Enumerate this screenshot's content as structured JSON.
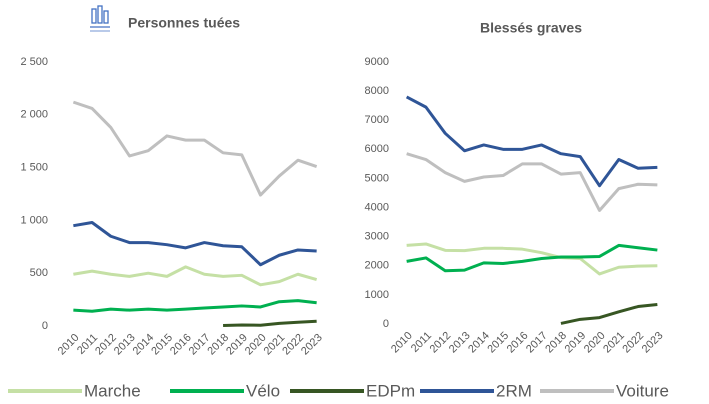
{
  "chart_data": [
    {
      "type": "line",
      "title": "Personnes tuées",
      "categories": [
        "2010",
        "2011",
        "2012",
        "2013",
        "2014",
        "2015",
        "2016",
        "2017",
        "2018",
        "2019",
        "2020",
        "2021",
        "2022",
        "2023"
      ],
      "ylim": [
        0,
        2500
      ],
      "yticks": [
        0,
        500,
        {
          "value": 1000,
          "label": "1 000"
        },
        {
          "value": 1500,
          "label": "1 500"
        },
        {
          "value": 2000,
          "label": "2 000"
        },
        {
          "value": 2500,
          "label": "2 500"
        }
      ],
      "series": [
        {
          "name": "Marche",
          "color": "#c5e0a5",
          "values": [
            490,
            520,
            490,
            470,
            500,
            470,
            560,
            490,
            470,
            480,
            390,
            420,
            490,
            440
          ]
        },
        {
          "name": "Vélo",
          "color": "#00b050",
          "values": [
            150,
            140,
            160,
            150,
            160,
            150,
            160,
            170,
            180,
            190,
            180,
            230,
            240,
            220
          ]
        },
        {
          "name": "EDPm",
          "color": "#375623",
          "values": [
            null,
            null,
            null,
            null,
            null,
            null,
            null,
            null,
            5,
            10,
            7,
            25,
            35,
            45
          ]
        },
        {
          "name": "2RM",
          "color": "#2f5597",
          "values": [
            950,
            980,
            850,
            790,
            790,
            770,
            740,
            790,
            760,
            750,
            580,
            670,
            720,
            710
          ]
        },
        {
          "name": "Voiture",
          "color": "#bfbfbf",
          "values": [
            2120,
            2060,
            1880,
            1610,
            1660,
            1800,
            1760,
            1760,
            1640,
            1620,
            1240,
            1420,
            1570,
            1510
          ]
        }
      ]
    },
    {
      "type": "line",
      "title": "Blessés graves",
      "categories": [
        "2010",
        "2011",
        "2012",
        "2013",
        "2014",
        "2015",
        "2016",
        "2017",
        "2018",
        "2019",
        "2020",
        "2021",
        "2022",
        "2023"
      ],
      "ylim": [
        0,
        9000
      ],
      "yticks": [
        0,
        1000,
        2000,
        3000,
        4000,
        5000,
        6000,
        7000,
        8000,
        9000
      ],
      "series": [
        {
          "name": "Marche",
          "color": "#c5e0a5",
          "values": [
            2700,
            2750,
            2530,
            2520,
            2600,
            2600,
            2570,
            2450,
            2280,
            2250,
            1720,
            1950,
            1990,
            2000
          ]
        },
        {
          "name": "Vélo",
          "color": "#00b050",
          "values": [
            2150,
            2270,
            1830,
            1850,
            2100,
            2080,
            2150,
            2250,
            2300,
            2300,
            2320,
            2700,
            2620,
            2540
          ]
        },
        {
          "name": "EDPm",
          "color": "#375623",
          "values": [
            null,
            null,
            null,
            null,
            null,
            null,
            null,
            null,
            20,
            160,
            220,
            420,
            600,
            670
          ]
        },
        {
          "name": "2RM",
          "color": "#2f5597",
          "values": [
            7800,
            7450,
            6550,
            5950,
            6150,
            6000,
            6000,
            6150,
            5850,
            5750,
            4750,
            5650,
            5350,
            5380
          ]
        },
        {
          "name": "Voiture",
          "color": "#bfbfbf",
          "values": [
            5850,
            5650,
            5200,
            4900,
            5050,
            5100,
            5500,
            5500,
            5150,
            5200,
            3900,
            4650,
            4800,
            4780
          ]
        }
      ]
    }
  ]
}
